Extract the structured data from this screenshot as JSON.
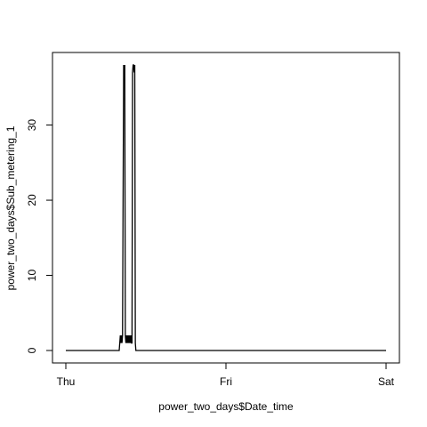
{
  "chart_data": {
    "type": "line",
    "title": "",
    "xlabel": "power_two_days$Date_time",
    "ylabel": "power_two_days$Sub_metering_1",
    "x_type": "time",
    "xlim": [
      "2007-02-01T00:00",
      "2007-02-03T00:00"
    ],
    "ylim": [
      0,
      38
    ],
    "x_ticks": [
      {
        "value": "2007-02-01T00:00",
        "label": "Thu"
      },
      {
        "value": "2007-02-02T00:00",
        "label": "Fri"
      },
      {
        "value": "2007-02-03T00:00",
        "label": "Sat"
      }
    ],
    "y_ticks": [
      0,
      10,
      20,
      30
    ],
    "grid": false,
    "legend": "none",
    "line_color": "#000000",
    "series": [
      {
        "x": [
          "2007-02-01T00:00",
          "2007-02-01T08:00",
          "2007-02-01T08:05",
          "2007-02-01T08:10",
          "2007-02-01T08:15",
          "2007-02-01T08:20",
          "2007-02-01T08:25",
          "2007-02-01T08:30",
          "2007-02-01T08:40",
          "2007-02-01T08:45",
          "2007-02-01T08:50",
          "2007-02-01T08:55",
          "2007-02-01T09:00",
          "2007-02-01T09:05",
          "2007-02-01T09:10",
          "2007-02-01T09:15",
          "2007-02-01T09:20",
          "2007-02-01T09:25",
          "2007-02-01T09:30",
          "2007-02-01T09:35",
          "2007-02-01T09:40",
          "2007-02-01T09:45",
          "2007-02-01T09:50",
          "2007-02-01T09:55",
          "2007-02-01T10:00",
          "2007-02-01T10:05",
          "2007-02-01T10:10",
          "2007-02-01T10:15",
          "2007-02-01T10:20",
          "2007-02-01T10:25",
          "2007-02-01T10:30",
          "2007-02-01T10:35",
          "2007-02-01T10:40",
          "2007-02-01T10:45",
          "2007-02-01T10:50",
          "2007-02-01T10:55",
          "2007-02-01T11:00",
          "2007-02-02T00:00",
          "2007-02-03T00:00"
        ],
        "y": [
          0,
          0,
          1,
          2,
          1,
          2,
          1,
          2,
          38,
          37,
          38,
          2,
          1,
          2,
          1,
          2,
          1,
          2,
          1,
          2,
          1,
          2,
          1,
          1,
          37,
          38,
          38,
          37,
          38,
          1,
          0,
          0,
          0,
          0,
          0,
          0,
          0,
          0,
          0
        ]
      }
    ]
  }
}
